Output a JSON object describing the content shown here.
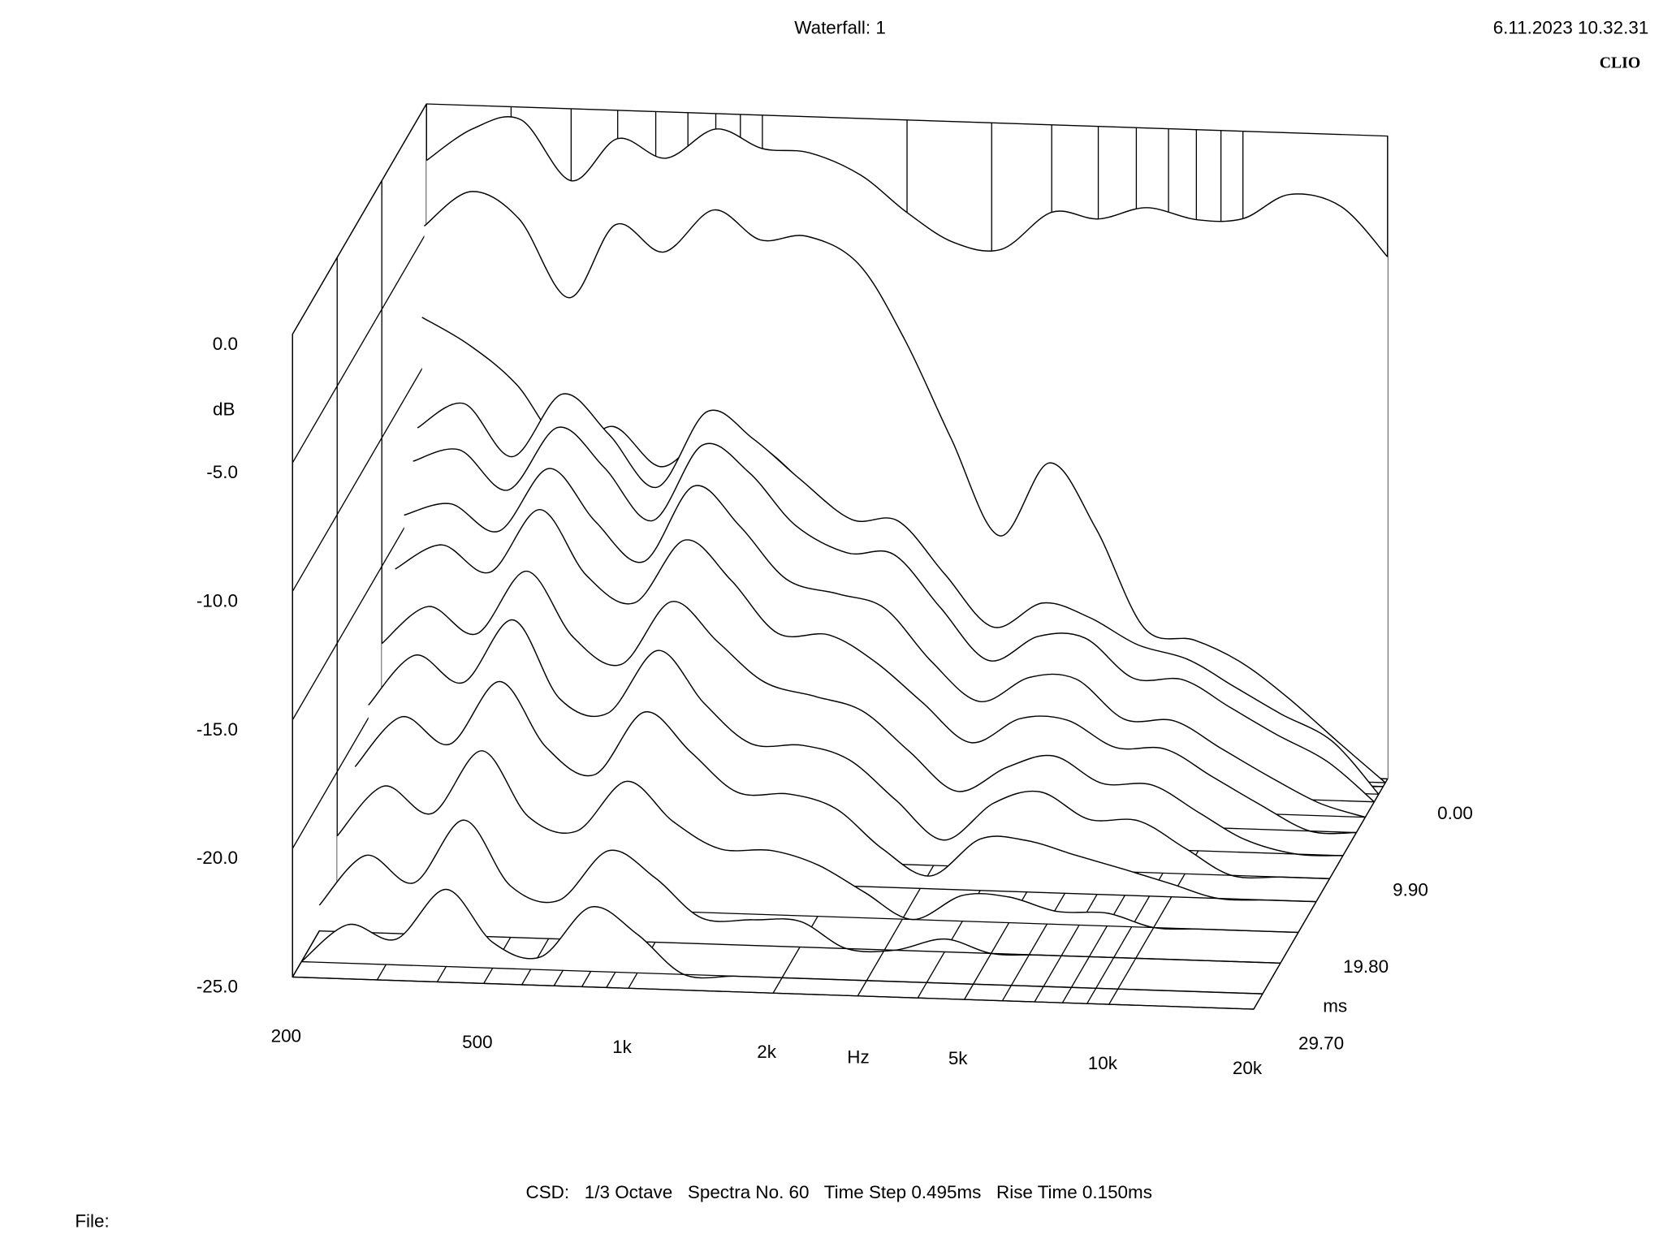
{
  "header": {
    "title": "Waterfall: 1",
    "timestamp": "6.11.2023 10.32.31",
    "brand": "CLIO"
  },
  "chart_data": {
    "type": "waterfall",
    "xlabel": "Hz",
    "ylabel": "dB",
    "zlabel": "ms",
    "xscale": "log",
    "xlim": [
      200,
      20000
    ],
    "xticks": [
      200,
      500,
      {
        "value": 1000,
        "label": "1k"
      },
      {
        "value": 2000,
        "label": "2k"
      },
      {
        "value": 5000,
        "label": "5k"
      },
      {
        "value": 10000,
        "label": "10k"
      },
      {
        "value": 20000,
        "label": "20k"
      }
    ],
    "xminor": [
      200,
      300,
      400,
      500,
      600,
      700,
      800,
      900,
      1000,
      2000,
      3000,
      4000,
      5000,
      6000,
      7000,
      8000,
      9000,
      10000,
      20000
    ],
    "ylim": [
      -25,
      0
    ],
    "yticks": [
      {
        "value": 0,
        "label": "0.0"
      },
      {
        "value": -5,
        "label": "-5.0"
      },
      {
        "value": -10,
        "label": "-10.0"
      },
      {
        "value": -15,
        "label": "-15.0"
      },
      {
        "value": -20,
        "label": "-20.0"
      },
      {
        "value": -25,
        "label": "-25.0"
      }
    ],
    "zlim": [
      0,
      29.7
    ],
    "zticks": [
      {
        "value": 0,
        "label": "0.00"
      },
      {
        "value": 9.9,
        "label": "9.90"
      },
      {
        "value": 19.8,
        "label": "19.80"
      },
      {
        "value": 29.7,
        "label": "29.70"
      }
    ],
    "color": "#000000",
    "x": [
      200,
      250,
      315,
      400,
      500,
      630,
      800,
      1000,
      1250,
      1600,
      2000,
      2500,
      3150,
      4000,
      5000,
      6300,
      8000,
      10000,
      12500,
      16000,
      20000
    ],
    "series": [
      {
        "time": 0,
        "values": [
          -2.2,
          -0.9,
          -0.5,
          -2.8,
          -1.1,
          -1.8,
          -0.6,
          -1.3,
          -1.4,
          -2.2,
          -3.6,
          -4.7,
          -4.9,
          -3.4,
          -3.6,
          -3.1,
          -3.5,
          -3.4,
          -2.4,
          -2.8,
          -4.7
        ]
      },
      {
        "time": 0.495,
        "values": [
          -4.6,
          -3.2,
          -4.2,
          -7.2,
          -4.3,
          -5.3,
          -3.6,
          -4.7,
          -4.5,
          -5.5,
          -8.4,
          -12.2,
          -15.9,
          -13,
          -15.5,
          -19.3,
          -19.7,
          -20.5,
          -21.8,
          -23.5,
          -25
        ]
      },
      {
        "time": 0.99,
        "values": [
          -8,
          -9,
          -10.5,
          -13,
          -12,
          -13.5,
          -12,
          -12.5,
          -14,
          -16,
          -18.5,
          -20,
          -21,
          -21.5,
          -22,
          -23,
          -23.5,
          -24,
          -24.5,
          -25,
          -25
        ]
      },
      {
        "time": 1.98,
        "values": [
          -12,
          -11,
          -13,
          -10.5,
          -12,
          -14,
          -11,
          -12,
          -13.5,
          -15,
          -15,
          -17,
          -19,
          -18,
          -18.5,
          -19.5,
          -20,
          -21,
          -22,
          -23,
          -25
        ]
      },
      {
        "time": 2.97,
        "values": [
          -13,
          -12.5,
          -14,
          -11.5,
          -13,
          -15,
          -12,
          -13,
          -15,
          -16,
          -16,
          -18,
          -20,
          -19,
          -19,
          -20.5,
          -20.5,
          -21.5,
          -22.5,
          -23.5,
          -25
        ]
      },
      {
        "time": 4.95,
        "values": [
          -14.5,
          -14,
          -15,
          -12.5,
          -14.5,
          -16,
          -13,
          -14.5,
          -16.5,
          -17,
          -17.5,
          -19.5,
          -21,
          -20,
          -20,
          -21.5,
          -21.5,
          -22.5,
          -23.5,
          -24.5,
          -25
        ]
      },
      {
        "time": 6.93,
        "values": [
          -16,
          -15,
          -16,
          -13.5,
          -16,
          -17,
          -14.5,
          -16,
          -18,
          -18,
          -19,
          -20.5,
          -22,
          -21,
          -21,
          -22,
          -22,
          -23,
          -24,
          -25,
          -25
        ]
      },
      {
        "time": 9.9,
        "values": [
          -18,
          -16.5,
          -17.5,
          -15,
          -17.5,
          -18.5,
          -16,
          -17.5,
          -19,
          -19.5,
          -20,
          -21.5,
          -23,
          -22,
          -21.5,
          -22.5,
          -22.5,
          -23.5,
          -24.5,
          -25,
          -25
        ]
      },
      {
        "time": 12.87,
        "values": [
          -19.5,
          -17.5,
          -18.5,
          -16,
          -19,
          -19.5,
          -17,
          -19,
          -20.5,
          -20.5,
          -21,
          -22.5,
          -24,
          -22.5,
          -22,
          -23,
          -23,
          -24,
          -25,
          -25,
          -25
        ]
      },
      {
        "time": 15.84,
        "values": [
          -21,
          -19,
          -20,
          -17.5,
          -20,
          -21,
          -18.5,
          -20,
          -21.5,
          -21.5,
          -22,
          -23.5,
          -24.5,
          -23,
          -23,
          -23.5,
          -24,
          -24.5,
          -25,
          -25,
          -25
        ]
      },
      {
        "time": 19.8,
        "values": [
          -22.5,
          -20.5,
          -21.5,
          -19,
          -21.5,
          -22,
          -20,
          -21.5,
          -22.5,
          -22.5,
          -23,
          -24,
          -25,
          -24,
          -24,
          -24.5,
          -24.5,
          -25,
          -25,
          -25,
          -25
        ]
      },
      {
        "time": 23.76,
        "values": [
          -24,
          -22,
          -23,
          -20.5,
          -23,
          -23.5,
          -21.5,
          -22.5,
          -24,
          -24,
          -24,
          -25,
          -25,
          -24.5,
          -25,
          -25,
          -25,
          -25,
          -25,
          -25,
          -25
        ]
      },
      {
        "time": 27.72,
        "values": [
          -25,
          -23.5,
          -24,
          -22,
          -24,
          -24.5,
          -22.5,
          -23.5,
          -25,
          -25,
          -25,
          -25,
          -25,
          -25,
          -25,
          -25,
          -25,
          -25,
          -25,
          -25,
          -25
        ]
      }
    ]
  },
  "footer": {
    "settings": "CSD:   1/3 Octave   Spectra No. 60   Time Step 0.495ms   Rise Time 0.150ms",
    "file": "File:"
  }
}
